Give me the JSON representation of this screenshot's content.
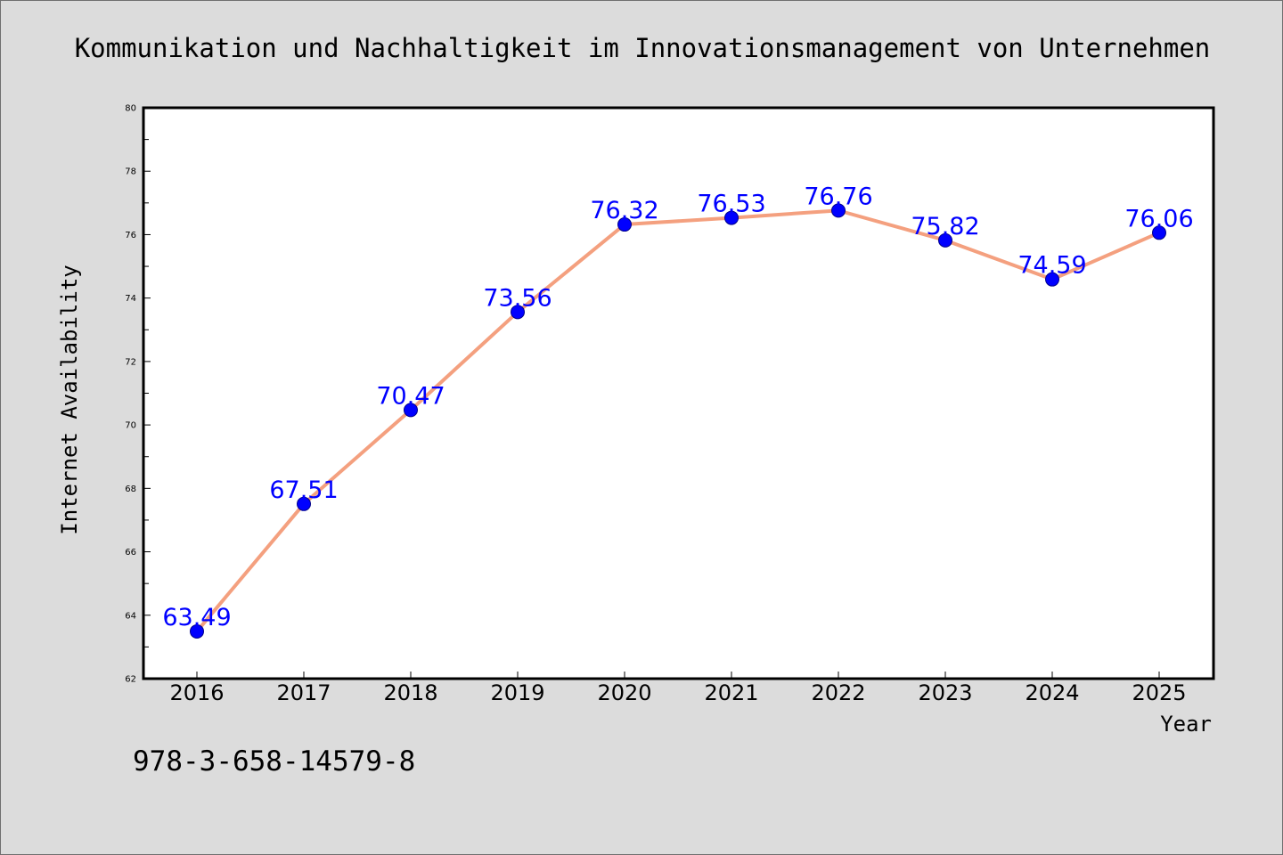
{
  "isbn": "978-3-658-14579-8",
  "colors": {
    "background": "#dcdcdc",
    "plot_background": "#ffffff",
    "line": "#f4a07f",
    "marker": "#0000ff",
    "data_label": "#0000ff"
  },
  "chart_data": {
    "type": "line",
    "title": "Kommunikation und Nachhaltigkeit im Innovationsmanagement von Unternehmen",
    "xlabel": "Year",
    "ylabel": "Internet Availability",
    "x": [
      "2016",
      "2017",
      "2018",
      "2019",
      "2020",
      "2021",
      "2022",
      "2023",
      "2024",
      "2025"
    ],
    "series": [
      {
        "values": [
          63.49,
          67.51,
          70.47,
          73.56,
          76.32,
          76.53,
          76.76,
          75.82,
          74.59,
          76.06
        ],
        "labels": [
          "63.49",
          "67.51",
          "70.47",
          "73.56",
          "76.32",
          "76.53",
          "76.76",
          "75.82",
          "74.59",
          "76.06"
        ]
      }
    ],
    "ylim": [
      62,
      80
    ],
    "yticks": [
      "62",
      "64",
      "66",
      "68",
      "70",
      "72",
      "74",
      "76",
      "78",
      "80"
    ],
    "grid": false,
    "legend": "none"
  }
}
